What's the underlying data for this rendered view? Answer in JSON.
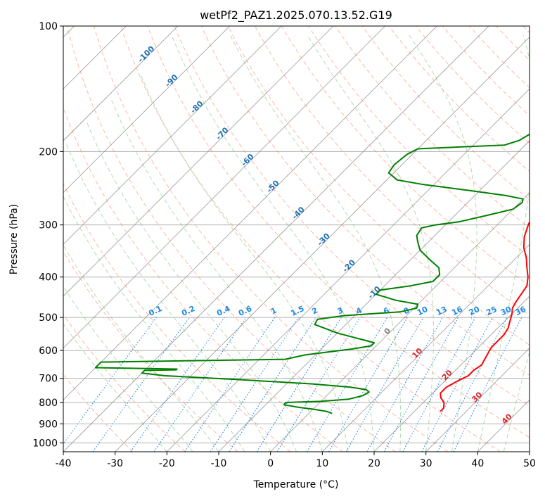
{
  "chart_data": {
    "type": "line",
    "title": "wetPf2_PAZ1.2025.070.13.52.G19",
    "xlabel": "Temperature (°C)",
    "ylabel": "Pressure (hPa)",
    "xlim": [
      -40,
      50
    ],
    "ylim": [
      1050,
      100
    ],
    "y_scale": "log",
    "skew": "skew-T",
    "grid": true,
    "x_ticks": [
      "-40",
      "-30",
      "-20",
      "-10",
      "0",
      "10",
      "20",
      "30",
      "40",
      "50"
    ],
    "y_ticks": [
      "100",
      "200",
      "300",
      "400",
      "500",
      "600",
      "700",
      "800",
      "900",
      "1000"
    ],
    "series": [
      {
        "color": "#ff0000",
        "points": [
          [
            25.0,
            840
          ],
          [
            25.0,
            825
          ],
          [
            24.0,
            800
          ],
          [
            22.5,
            780
          ],
          [
            21.5,
            760
          ],
          [
            21.5,
            735
          ],
          [
            22.5,
            710
          ],
          [
            23.5,
            690
          ],
          [
            23.5,
            670
          ],
          [
            24.0,
            650
          ],
          [
            23.5,
            630
          ],
          [
            23.0,
            610
          ],
          [
            22.5,
            590
          ],
          [
            22.5,
            570
          ],
          [
            22.5,
            550
          ],
          [
            22.0,
            530
          ],
          [
            21.0,
            510
          ],
          [
            20.0,
            490
          ],
          [
            19.0,
            475
          ],
          [
            18.5,
            460
          ],
          [
            18.0,
            440
          ],
          [
            17.5,
            420
          ],
          [
            16.0,
            400
          ],
          [
            14.0,
            380
          ],
          [
            12.0,
            360
          ],
          [
            9.5,
            340
          ],
          [
            7.5,
            320
          ],
          [
            6.0,
            300
          ],
          [
            5.0,
            285
          ],
          [
            4.0,
            270
          ],
          [
            3.5,
            255
          ],
          [
            3.5,
            240
          ],
          [
            4.0,
            230
          ],
          [
            5.5,
            220
          ],
          [
            7.0,
            212
          ],
          [
            7.0,
            200
          ],
          [
            6.0,
            185
          ],
          [
            5.0,
            170
          ],
          [
            4.0,
            155
          ],
          [
            3.0,
            140
          ],
          [
            2.5,
            125
          ],
          [
            3.0,
            115
          ],
          [
            4.5,
            100
          ]
        ]
      },
      {
        "color": "#008000",
        "points": [
          [
            4.5,
            850
          ],
          [
            3.0,
            840
          ],
          [
            0.0,
            830
          ],
          [
            -3.0,
            822
          ],
          [
            -6.5,
            810
          ],
          [
            -6.5,
            800
          ],
          [
            0.0,
            795
          ],
          [
            5.0,
            785
          ],
          [
            7.0,
            770
          ],
          [
            7.5,
            755
          ],
          [
            6.5,
            745
          ],
          [
            3.0,
            735
          ],
          [
            -5.0,
            722
          ],
          [
            -20.0,
            705
          ],
          [
            -35.0,
            690
          ],
          [
            -40.0,
            680
          ],
          [
            -40.0,
            670
          ],
          [
            -34.0,
            668
          ],
          [
            -34.0,
            665
          ],
          [
            -50.0,
            660
          ],
          [
            -50.0,
            640
          ],
          [
            -15.0,
            630
          ],
          [
            -12.0,
            615
          ],
          [
            -8.0,
            605
          ],
          [
            -4.0,
            595
          ],
          [
            -1.0,
            585
          ],
          [
            -1.0,
            575
          ],
          [
            -4.0,
            565
          ],
          [
            -10.0,
            545
          ],
          [
            -16.0,
            520
          ],
          [
            -16.5,
            505
          ],
          [
            -12.0,
            495
          ],
          [
            -2.0,
            485
          ],
          [
            0.5,
            475
          ],
          [
            0.0,
            465
          ],
          [
            -5.0,
            455
          ],
          [
            -10.0,
            440
          ],
          [
            -10.0,
            430
          ],
          [
            -5.0,
            420
          ],
          [
            -1.5,
            410
          ],
          [
            -1.5,
            395
          ],
          [
            -3.0,
            380
          ],
          [
            -6.0,
            365
          ],
          [
            -10.0,
            345
          ],
          [
            -12.0,
            330
          ],
          [
            -13.5,
            318
          ],
          [
            -14.0,
            305
          ],
          [
            -12.0,
            300
          ],
          [
            -8.0,
            295
          ],
          [
            -4.0,
            285
          ],
          [
            0.0,
            275
          ],
          [
            0.5,
            265
          ],
          [
            0.0,
            260
          ],
          [
            -4.0,
            255
          ],
          [
            -12.0,
            248
          ],
          [
            -22.0,
            240
          ],
          [
            -28.0,
            234
          ],
          [
            -31.0,
            225
          ],
          [
            -31.5,
            215
          ],
          [
            -31.0,
            203
          ],
          [
            -30.0,
            197
          ],
          [
            -22.0,
            195
          ],
          [
            -14.0,
            193
          ],
          [
            -12.0,
            188
          ],
          [
            -11.0,
            180
          ],
          [
            -10.0,
            170
          ],
          [
            -8.0,
            160
          ],
          [
            -6.0,
            150
          ],
          [
            -4.5,
            140
          ],
          [
            -3.0,
            130
          ],
          [
            -1.5,
            120
          ],
          [
            0.0,
            110
          ],
          [
            1.5,
            100
          ]
        ]
      }
    ],
    "isotherm_labels": [
      {
        "text": "-100",
        "t": -100
      },
      {
        "text": "-90",
        "t": -90
      },
      {
        "text": "-80",
        "t": -80
      },
      {
        "text": "-70",
        "t": -70
      },
      {
        "text": "-60",
        "t": -60
      },
      {
        "text": "-50",
        "t": -50
      },
      {
        "text": "-40",
        "t": -40
      },
      {
        "text": "-30",
        "t": -30
      },
      {
        "text": "-20",
        "t": -20
      },
      {
        "text": "-10",
        "t": -10
      },
      {
        "text": "0",
        "t": 0
      },
      {
        "text": "10",
        "t": 10
      },
      {
        "text": "20",
        "t": 20
      },
      {
        "text": "30",
        "t": 30
      },
      {
        "text": "40",
        "t": 40
      }
    ],
    "mixing_ratio_labels": [
      "0.1",
      "0.2",
      "0.4",
      "0.6",
      "1",
      "1.5",
      "2",
      "3",
      "4",
      "6",
      "8",
      "10",
      "13",
      "16",
      "20",
      "25",
      "30",
      "36"
    ],
    "mixing_ratio_values": [
      0.1,
      0.2,
      0.4,
      0.6,
      1,
      1.5,
      2,
      3,
      4,
      6,
      8,
      10,
      13,
      16,
      20,
      25,
      30,
      36
    ],
    "colors": {
      "temperature": "#ff0000",
      "dewpoint": "#008000",
      "isotherm": "#808080",
      "dry_adiabat": "#ff6f4a",
      "moist_adiabat": "#6fbf6f",
      "mixing_ratio": "#1e88e5",
      "label_blue": "#1f6fb4",
      "label_red": "#d62728",
      "label_gray": "#7f7f7f",
      "grid": "#b0b0b0"
    }
  }
}
